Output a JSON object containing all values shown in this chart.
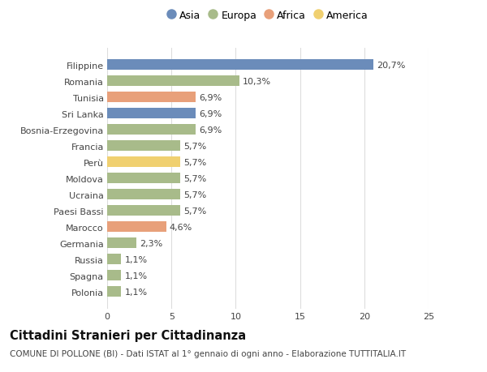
{
  "categories": [
    "Filippine",
    "Romania",
    "Tunisia",
    "Sri Lanka",
    "Bosnia-Erzegovina",
    "Francia",
    "Perù",
    "Moldova",
    "Ucraina",
    "Paesi Bassi",
    "Marocco",
    "Germania",
    "Russia",
    "Spagna",
    "Polonia"
  ],
  "values": [
    20.7,
    10.3,
    6.9,
    6.9,
    6.9,
    5.7,
    5.7,
    5.7,
    5.7,
    5.7,
    4.6,
    2.3,
    1.1,
    1.1,
    1.1
  ],
  "labels": [
    "20,7%",
    "10,3%",
    "6,9%",
    "6,9%",
    "6,9%",
    "5,7%",
    "5,7%",
    "5,7%",
    "5,7%",
    "5,7%",
    "4,6%",
    "2,3%",
    "1,1%",
    "1,1%",
    "1,1%"
  ],
  "continents": [
    "Asia",
    "Europa",
    "Africa",
    "Asia",
    "Europa",
    "Europa",
    "America",
    "Europa",
    "Europa",
    "Europa",
    "Africa",
    "Europa",
    "Europa",
    "Europa",
    "Europa"
  ],
  "continent_colors": {
    "Asia": "#6b8cba",
    "Europa": "#a8bb8a",
    "Africa": "#e8a07a",
    "America": "#f0d070"
  },
  "legend_order": [
    "Asia",
    "Europa",
    "Africa",
    "America"
  ],
  "title": "Cittadini Stranieri per Cittadinanza",
  "subtitle": "COMUNE DI POLLONE (BI) - Dati ISTAT al 1° gennaio di ogni anno - Elaborazione TUTTITALIA.IT",
  "xlim": [
    0,
    25
  ],
  "xticks": [
    0,
    5,
    10,
    15,
    20,
    25
  ],
  "bg_color": "#ffffff",
  "plot_bg_color": "#ffffff",
  "grid_color": "#dddddd",
  "bar_height": 0.65,
  "title_fontsize": 10.5,
  "subtitle_fontsize": 7.5,
  "label_fontsize": 8,
  "tick_fontsize": 8,
  "legend_fontsize": 9
}
